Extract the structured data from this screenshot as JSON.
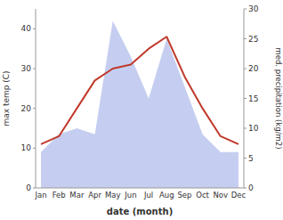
{
  "chart_data": {
    "type": "line",
    "categories": [
      "Jan",
      "Feb",
      "Mar",
      "Apr",
      "May",
      "Jun",
      "Jul",
      "Aug",
      "Sep",
      "Oct",
      "Nov",
      "Dec"
    ],
    "xlabel": "date (month)",
    "ylabel": "max temp (C)",
    "y2label": "med. precipitation (kg/m2)",
    "ylim": [
      0,
      45
    ],
    "yticks": [
      0,
      10,
      20,
      30,
      40
    ],
    "y2lim": [
      0,
      30
    ],
    "y2ticks": [
      0,
      5,
      10,
      15,
      20,
      25,
      30
    ],
    "grid": false,
    "series": [
      {
        "type": "area",
        "axis": "y2",
        "color": "#c5cef0",
        "values": [
          6,
          9,
          10,
          9,
          28,
          22,
          15,
          25,
          17,
          9,
          6,
          6
        ]
      },
      {
        "type": "line",
        "color": "#c0392b",
        "values": [
          11,
          13,
          20,
          27,
          30,
          31,
          35,
          38,
          28,
          20,
          13,
          11
        ]
      }
    ]
  }
}
